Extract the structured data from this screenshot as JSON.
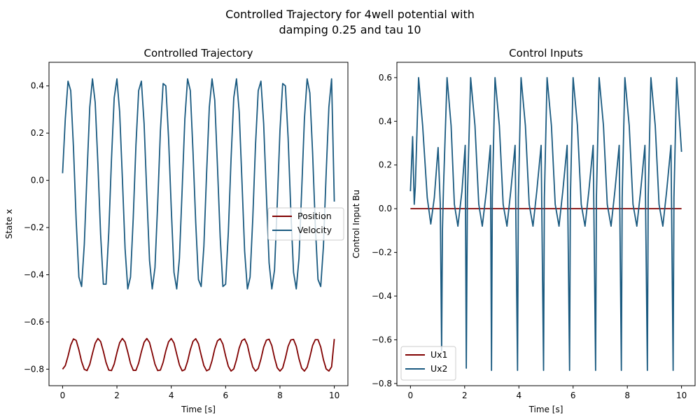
{
  "figure": {
    "title_line1": "Controlled Trajectory for 4well potential with",
    "title_line2": "damping 0.25 and tau 10"
  },
  "chart_data": [
    {
      "type": "line",
      "title": "Controlled Trajectory",
      "xlabel": "Time [s]",
      "ylabel": "State x",
      "xlim": [
        -0.5,
        10.5
      ],
      "ylim": [
        -0.87,
        0.5
      ],
      "xticks": [
        0,
        2,
        4,
        6,
        8,
        10
      ],
      "yticks": [
        -0.8,
        -0.6,
        -0.4,
        -0.2,
        0.0,
        0.2,
        0.4
      ],
      "ytick_labels": [
        "−0.8",
        "−0.6",
        "−0.4",
        "−0.2",
        "0.0",
        "0.2",
        "0.4"
      ],
      "grid": false,
      "legend_position": "center-right",
      "series": [
        {
          "name": "Position",
          "color": "#800000",
          "x": [
            0.0,
            0.1,
            0.2,
            0.3,
            0.4,
            0.5,
            0.6,
            0.7,
            0.8,
            0.9,
            1.0,
            1.1,
            1.2,
            1.3,
            1.4,
            1.5,
            1.6,
            1.7,
            1.8,
            1.9,
            2.0,
            2.1,
            2.2,
            2.3,
            2.4,
            2.5,
            2.6,
            2.7,
            2.8,
            2.9,
            3.0,
            3.1,
            3.2,
            3.3,
            3.4,
            3.5,
            3.6,
            3.7,
            3.8,
            3.9,
            4.0,
            4.1,
            4.2,
            4.3,
            4.4,
            4.5,
            4.6,
            4.7,
            4.8,
            4.9,
            5.0,
            5.1,
            5.2,
            5.3,
            5.4,
            5.5,
            5.6,
            5.7,
            5.8,
            5.9,
            6.0,
            6.1,
            6.2,
            6.3,
            6.4,
            6.5,
            6.6,
            6.7,
            6.8,
            6.9,
            7.0,
            7.1,
            7.2,
            7.3,
            7.4,
            7.5,
            7.6,
            7.7,
            7.8,
            7.9,
            8.0,
            8.1,
            8.2,
            8.3,
            8.4,
            8.5,
            8.6,
            8.7,
            8.8,
            8.9,
            9.0,
            9.1,
            9.2,
            9.3,
            9.4,
            9.5,
            9.6,
            9.7,
            9.8,
            9.9,
            10.0
          ],
          "y": [
            -0.8,
            -0.785,
            -0.745,
            -0.698,
            -0.672,
            -0.678,
            -0.718,
            -0.768,
            -0.801,
            -0.806,
            -0.78,
            -0.733,
            -0.69,
            -0.67,
            -0.683,
            -0.724,
            -0.772,
            -0.804,
            -0.806,
            -0.778,
            -0.73,
            -0.688,
            -0.67,
            -0.685,
            -0.728,
            -0.776,
            -0.805,
            -0.805,
            -0.774,
            -0.726,
            -0.686,
            -0.67,
            -0.687,
            -0.732,
            -0.779,
            -0.806,
            -0.804,
            -0.771,
            -0.722,
            -0.684,
            -0.67,
            -0.689,
            -0.736,
            -0.782,
            -0.807,
            -0.802,
            -0.767,
            -0.718,
            -0.682,
            -0.671,
            -0.692,
            -0.74,
            -0.785,
            -0.807,
            -0.801,
            -0.764,
            -0.714,
            -0.68,
            -0.671,
            -0.694,
            -0.744,
            -0.788,
            -0.808,
            -0.799,
            -0.76,
            -0.71,
            -0.679,
            -0.672,
            -0.697,
            -0.748,
            -0.791,
            -0.808,
            -0.797,
            -0.757,
            -0.707,
            -0.677,
            -0.673,
            -0.7,
            -0.752,
            -0.794,
            -0.808,
            -0.795,
            -0.753,
            -0.703,
            -0.676,
            -0.674,
            -0.703,
            -0.756,
            -0.796,
            -0.808,
            -0.792,
            -0.749,
            -0.7,
            -0.675,
            -0.675,
            -0.706,
            -0.76,
            -0.799,
            -0.808,
            -0.79,
            -0.672
          ]
        },
        {
          "name": "Velocity",
          "color": "#1a5a80",
          "x": [
            0.0,
            0.1,
            0.2,
            0.3,
            0.4,
            0.5,
            0.6,
            0.7,
            0.8,
            0.9,
            1.0,
            1.1,
            1.2,
            1.3,
            1.4,
            1.5,
            1.6,
            1.7,
            1.8,
            1.9,
            2.0,
            2.1,
            2.2,
            2.3,
            2.4,
            2.5,
            2.6,
            2.7,
            2.8,
            2.9,
            3.0,
            3.1,
            3.2,
            3.3,
            3.4,
            3.5,
            3.6,
            3.7,
            3.8,
            3.9,
            4.0,
            4.1,
            4.2,
            4.3,
            4.4,
            4.5,
            4.6,
            4.7,
            4.8,
            4.9,
            5.0,
            5.1,
            5.2,
            5.3,
            5.4,
            5.5,
            5.6,
            5.7,
            5.8,
            5.9,
            6.0,
            6.1,
            6.2,
            6.3,
            6.4,
            6.5,
            6.6,
            6.7,
            6.8,
            6.9,
            7.0,
            7.1,
            7.2,
            7.3,
            7.4,
            7.5,
            7.6,
            7.7,
            7.8,
            7.9,
            8.0,
            8.1,
            8.2,
            8.3,
            8.4,
            8.5,
            8.6,
            8.7,
            8.8,
            8.9,
            9.0,
            9.1,
            9.2,
            9.3,
            9.4,
            9.5,
            9.6,
            9.7,
            9.8,
            9.9,
            10.0
          ],
          "y": [
            0.03,
            0.26,
            0.42,
            0.38,
            0.14,
            -0.17,
            -0.41,
            -0.45,
            -0.27,
            0.03,
            0.31,
            0.43,
            0.33,
            0.07,
            -0.23,
            -0.44,
            -0.44,
            -0.22,
            0.09,
            0.35,
            0.43,
            0.29,
            0.01,
            -0.29,
            -0.46,
            -0.41,
            -0.16,
            0.15,
            0.38,
            0.42,
            0.24,
            -0.06,
            -0.34,
            -0.46,
            -0.37,
            -0.1,
            0.21,
            0.41,
            0.4,
            0.18,
            -0.12,
            -0.39,
            -0.46,
            -0.33,
            -0.04,
            0.26,
            0.43,
            0.38,
            0.12,
            -0.18,
            -0.42,
            -0.45,
            -0.28,
            0.03,
            0.31,
            0.43,
            0.34,
            0.06,
            -0.24,
            -0.45,
            -0.44,
            -0.22,
            0.09,
            0.35,
            0.43,
            0.29,
            0.0,
            -0.3,
            -0.46,
            -0.41,
            -0.16,
            0.15,
            0.38,
            0.42,
            0.24,
            -0.06,
            -0.35,
            -0.46,
            -0.38,
            -0.1,
            0.21,
            0.41,
            0.4,
            0.18,
            -0.13,
            -0.39,
            -0.46,
            -0.33,
            -0.04,
            0.26,
            0.43,
            0.37,
            0.12,
            -0.19,
            -0.42,
            -0.45,
            -0.28,
            0.03,
            0.31,
            0.43,
            -0.09
          ]
        }
      ]
    },
    {
      "type": "line",
      "title": "Control Inputs",
      "xlabel": "Time [s]",
      "ylabel": "Control Input Bu",
      "xlim": [
        -0.5,
        10.5
      ],
      "ylim": [
        -0.81,
        0.67
      ],
      "xticks": [
        0,
        2,
        4,
        6,
        8,
        10
      ],
      "yticks": [
        -0.8,
        -0.6,
        -0.4,
        -0.2,
        0.0,
        0.2,
        0.4,
        0.6
      ],
      "ytick_labels": [
        "−0.8",
        "−0.6",
        "−0.4",
        "−0.2",
        "0.0",
        "0.2",
        "0.4",
        "0.6"
      ],
      "grid": false,
      "legend_position": "lower-left",
      "series": [
        {
          "name": "Ux1",
          "color": "#800000",
          "x": [
            0,
            10
          ],
          "y": [
            0.0,
            0.0
          ]
        },
        {
          "name": "Ux2",
          "color": "#1a5a80",
          "x": [
            0.0,
            0.08,
            0.14,
            0.18,
            0.3,
            0.45,
            0.62,
            0.75,
            0.88,
            1.02,
            1.1,
            1.15,
            1.18,
            1.22,
            1.35,
            1.5,
            1.62,
            1.75,
            1.9,
            2.02,
            2.06,
            2.1,
            2.22,
            2.38,
            2.52,
            2.65,
            2.8,
            2.95,
            2.99,
            3.02,
            3.12,
            3.28,
            3.42,
            3.56,
            3.7,
            3.86,
            3.95,
            3.98,
            4.08,
            4.24,
            4.38,
            4.52,
            4.66,
            4.82,
            4.91,
            4.94,
            5.04,
            5.2,
            5.34,
            5.48,
            5.62,
            5.78,
            5.87,
            5.9,
            6.0,
            6.16,
            6.3,
            6.44,
            6.58,
            6.74,
            6.83,
            6.86,
            6.96,
            7.12,
            7.26,
            7.4,
            7.54,
            7.7,
            7.78,
            7.81,
            7.91,
            8.07,
            8.21,
            8.35,
            8.49,
            8.65,
            8.74,
            8.77,
            8.87,
            9.03,
            9.17,
            9.31,
            9.45,
            9.61,
            9.69,
            9.72,
            9.82,
            10.0
          ],
          "y": [
            0.08,
            0.33,
            0.02,
            0.1,
            0.6,
            0.38,
            0.05,
            -0.07,
            0.05,
            0.28,
            0.02,
            -0.65,
            -0.1,
            0.1,
            0.6,
            0.38,
            0.02,
            -0.08,
            0.08,
            0.29,
            -0.73,
            0.05,
            0.6,
            0.38,
            0.02,
            -0.08,
            0.08,
            0.29,
            -0.74,
            0.05,
            0.6,
            0.38,
            0.02,
            -0.08,
            0.08,
            0.29,
            -0.74,
            0.05,
            0.6,
            0.38,
            0.02,
            -0.08,
            0.08,
            0.29,
            -0.74,
            0.05,
            0.6,
            0.38,
            0.02,
            -0.08,
            0.08,
            0.29,
            -0.74,
            0.05,
            0.6,
            0.38,
            0.02,
            -0.08,
            0.08,
            0.29,
            -0.74,
            0.05,
            0.6,
            0.38,
            0.02,
            -0.08,
            0.08,
            0.29,
            -0.74,
            0.05,
            0.6,
            0.38,
            0.02,
            -0.08,
            0.08,
            0.29,
            -0.74,
            0.05,
            0.6,
            0.38,
            0.02,
            -0.08,
            0.08,
            0.29,
            -0.74,
            0.05,
            0.6,
            0.26
          ]
        }
      ]
    }
  ]
}
